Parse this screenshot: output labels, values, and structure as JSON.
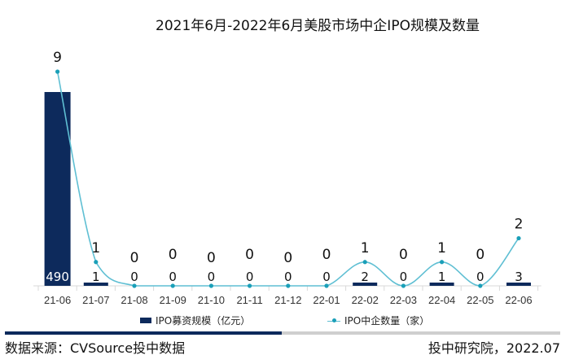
{
  "title": "2021年6月-2022年6月美股市场中企IPO规模及数量",
  "chart_data": {
    "type": "bar+line",
    "title": "2021年6月-2022年6月美股市场中企IPO规模及数量",
    "categories": [
      "21-06",
      "21-07",
      "21-08",
      "21-09",
      "21-10",
      "21-11",
      "21-12",
      "22-01",
      "22-02",
      "22-03",
      "22-04",
      "22-05",
      "22-06"
    ],
    "series": [
      {
        "name": "IPO募资规模（亿元）",
        "type": "bar",
        "color": "#0d2a5c",
        "values": [
          490,
          1,
          0,
          0,
          0,
          0,
          0,
          0,
          2,
          0,
          1,
          0,
          3
        ]
      },
      {
        "name": "IPO中企数量（家）",
        "type": "line",
        "color": "#5fbfd3",
        "values": [
          9,
          1,
          0,
          0,
          0,
          0,
          0,
          0,
          1,
          0,
          1,
          0,
          2
        ]
      }
    ],
    "xlabel": "",
    "ylabel": "",
    "grid": false,
    "legend_position": "bottom"
  },
  "legend": {
    "bar_label": "IPO募资规模（亿元）",
    "line_label": "IPO中企数量（家）"
  },
  "footer": {
    "source": "数据来源：CVSource投中数据",
    "credit": "投中研究院，2022.07"
  }
}
